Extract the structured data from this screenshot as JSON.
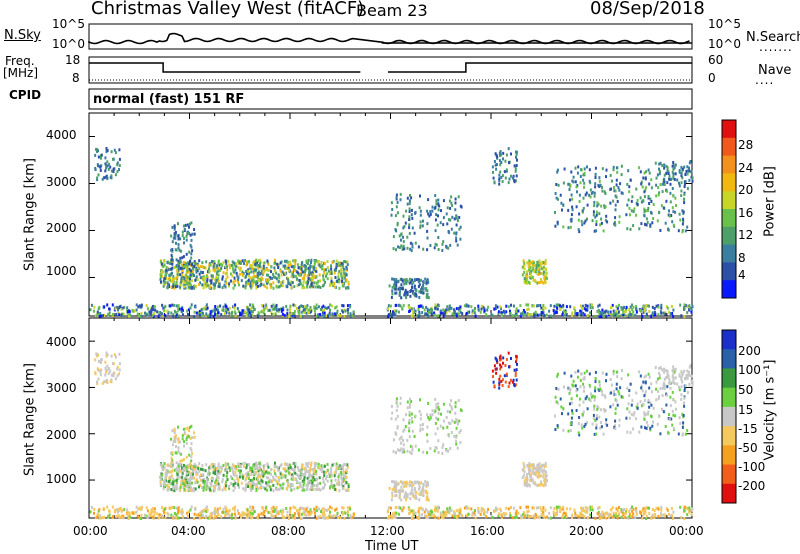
{
  "header": {
    "station": "Christmas Valley West (fitACF)",
    "beam": "Beam 23",
    "date": "08/Sep/2018"
  },
  "left_labels": {
    "nsky": "N.Sky",
    "freq_line1": "Freq.",
    "freq_line2": "[MHz]",
    "cpid": "CPID"
  },
  "right_labels": {
    "nsearch": "N.Search",
    "nave": "Nave"
  },
  "noise_axis": {
    "left_top": "10^5",
    "left_bottom": "10^0",
    "right_top": "10^5",
    "right_bottom": "10^0"
  },
  "freq_axis": {
    "left_top": "18",
    "left_bottom": "8",
    "right_top": "60",
    "right_bottom": "0"
  },
  "cpid_text": "normal (fast) 151 RF",
  "colors": {
    "power_scale": [
      "#0a1aff",
      "#2a50a8",
      "#3b7fa0",
      "#4ea06a",
      "#69c04a",
      "#c8d42a",
      "#f2b812",
      "#f39020",
      "#ef5a1c",
      "#e01010"
    ],
    "velocity_scale": [
      "#e01010",
      "#f0601a",
      "#f5a020",
      "#f5c860",
      "#c8c8c8",
      "#6ad040",
      "#3a9a40",
      "#2a60a8",
      "#1a30c8"
    ]
  },
  "chart_data": [
    {
      "type": "heatmap",
      "name": "Power",
      "ylabel": "Slant Range [km]",
      "yticks": [
        "4000",
        "3000",
        "2000",
        "1000"
      ],
      "ylim": [
        180,
        4500
      ],
      "xlim": [
        "00:00",
        "24:00"
      ],
      "colorbar_label": "Power [dB]",
      "colorbar_ticks": [
        "28",
        "24",
        "20",
        "16",
        "12",
        "8",
        "4"
      ],
      "colorbar_range": [
        0,
        32
      ]
    },
    {
      "type": "heatmap",
      "name": "Velocity",
      "ylabel": "Slant Range [km]",
      "yticks": [
        "4000",
        "3000",
        "2000",
        "1000"
      ],
      "ylim": [
        180,
        4500
      ],
      "xlim": [
        "00:00",
        "24:00"
      ],
      "colorbar_label": "Velocity [m s⁻¹]",
      "colorbar_ticks": [
        "200",
        "100",
        "50",
        "15",
        "-15",
        "-50",
        "-100",
        "-200"
      ]
    }
  ],
  "x_axis": {
    "ticks": [
      "00:00",
      "04:00",
      "08:00",
      "12:00",
      "16:00",
      "20:00",
      "00:00"
    ],
    "label": "Time UT"
  }
}
